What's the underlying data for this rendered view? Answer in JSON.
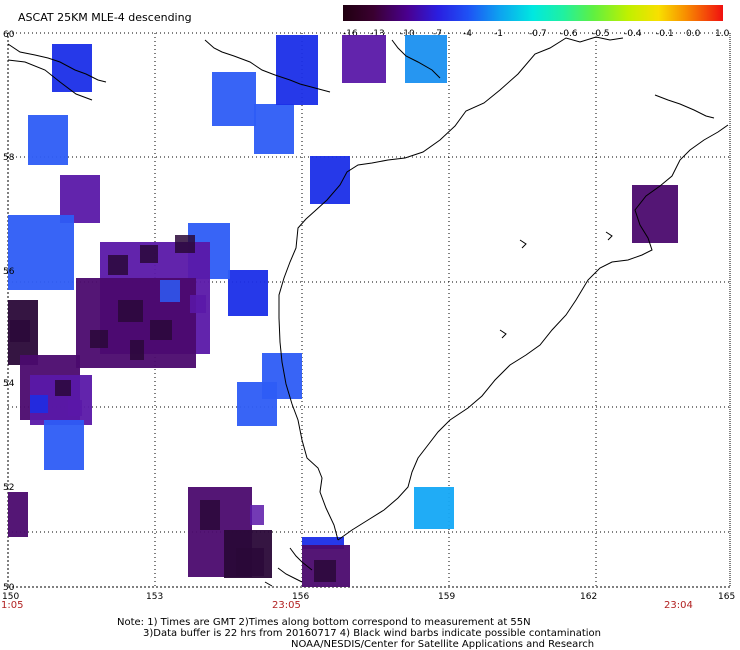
{
  "title": "ASCAT 25KM MLE-4 descending",
  "colorbar": {
    "labels": [
      "-16",
      "-13",
      "-10",
      "-7",
      "-4",
      "-1",
      "-0.7",
      "-0.6",
      "-0.5",
      "-0.4",
      "-0.1",
      "0.0",
      "1.0"
    ]
  },
  "map": {
    "x_ticks": [
      "150",
      "153",
      "156",
      "159",
      "162",
      "165"
    ],
    "y_ticks": [
      "60",
      "58",
      "56",
      "54",
      "52",
      "50"
    ],
    "times": [
      "1:05",
      "23:05",
      "23:04"
    ]
  },
  "notes": {
    "line1": "Note: 1) Times are GMT 2)Times along bottom correspond to measurement at 55N",
    "line2": "3)Data buffer is 22 hrs from 20160717 4) Black wind barbs indicate possible contamination",
    "line3": "NOAA/NESDIS/Center for Satellite Applications and Research"
  },
  "colors": {
    "dark_purple": "#4b0a6e",
    "very_dark": "#2a0838",
    "indigo": "#5a18a8",
    "blue": "#1a2ee8",
    "mid_blue": "#2d5cf5",
    "light_blue": "#1a90f0",
    "sky_blue": "#14a8f5"
  }
}
